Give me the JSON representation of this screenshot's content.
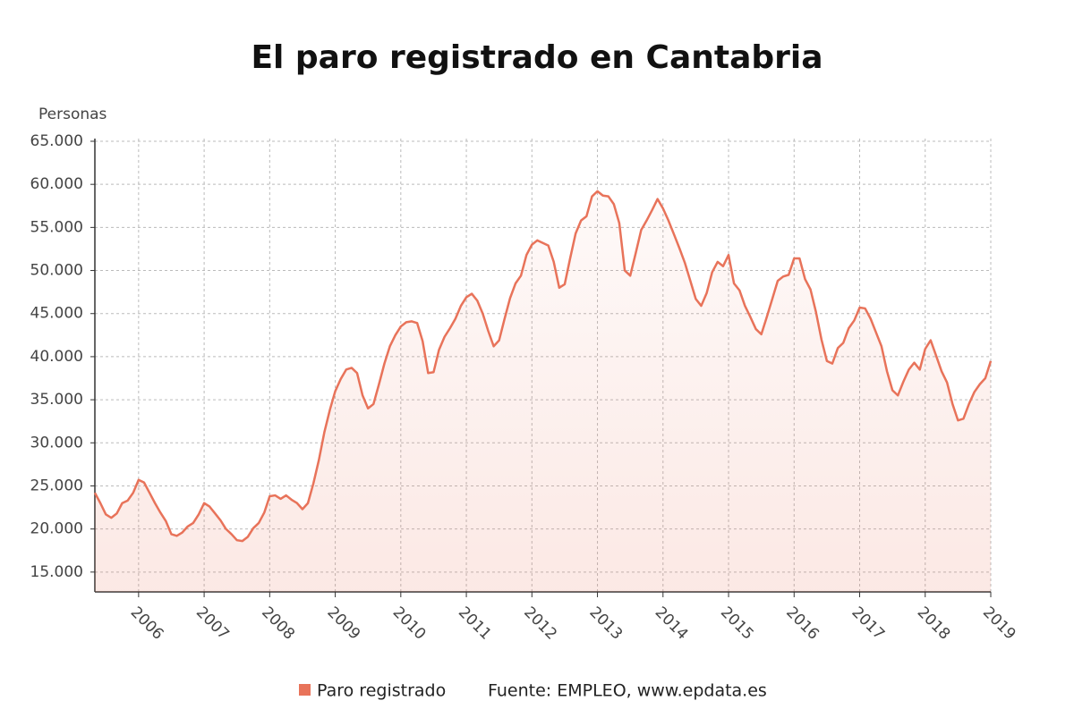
{
  "chart_data": {
    "type": "line",
    "title": "El paro registrado en Cantabria",
    "y_label": "Personas",
    "source": "Fuente: EMPLEO, www.epdata.es",
    "x": [
      2005.333,
      2005.417,
      2005.5,
      2005.583,
      2005.667,
      2005.75,
      2005.833,
      2005.917,
      2006,
      2006.083,
      2006.167,
      2006.25,
      2006.333,
      2006.417,
      2006.5,
      2006.583,
      2006.667,
      2006.75,
      2006.833,
      2006.917,
      2007,
      2007.083,
      2007.167,
      2007.25,
      2007.333,
      2007.417,
      2007.5,
      2007.583,
      2007.667,
      2007.75,
      2007.833,
      2007.917,
      2008,
      2008.083,
      2008.167,
      2008.25,
      2008.333,
      2008.417,
      2008.5,
      2008.583,
      2008.667,
      2008.75,
      2008.833,
      2008.917,
      2009,
      2009.083,
      2009.167,
      2009.25,
      2009.333,
      2009.417,
      2009.5,
      2009.583,
      2009.667,
      2009.75,
      2009.833,
      2009.917,
      2010,
      2010.083,
      2010.167,
      2010.25,
      2010.333,
      2010.417,
      2010.5,
      2010.583,
      2010.667,
      2010.75,
      2010.833,
      2010.917,
      2011,
      2011.083,
      2011.167,
      2011.25,
      2011.333,
      2011.417,
      2011.5,
      2011.583,
      2011.667,
      2011.75,
      2011.833,
      2011.917,
      2012,
      2012.083,
      2012.167,
      2012.25,
      2012.333,
      2012.417,
      2012.5,
      2012.583,
      2012.667,
      2012.75,
      2012.833,
      2012.917,
      2013,
      2013.083,
      2013.167,
      2013.25,
      2013.333,
      2013.417,
      2013.5,
      2013.583,
      2013.667,
      2013.75,
      2013.833,
      2013.917,
      2014,
      2014.083,
      2014.167,
      2014.25,
      2014.333,
      2014.417,
      2014.5,
      2014.583,
      2014.667,
      2014.75,
      2014.833,
      2014.917,
      2015,
      2015.083,
      2015.167,
      2015.25,
      2015.333,
      2015.417,
      2015.5,
      2015.583,
      2015.667,
      2015.75,
      2015.833,
      2015.917,
      2016,
      2016.083,
      2016.167,
      2016.25,
      2016.333,
      2016.417,
      2016.5,
      2016.583,
      2016.667,
      2016.75,
      2016.833,
      2016.917,
      2017,
      2017.083,
      2017.167,
      2017.25,
      2017.333,
      2017.417,
      2017.5,
      2017.583,
      2017.667,
      2017.75,
      2017.833,
      2017.917,
      2018,
      2018.083,
      2018.167,
      2018.25,
      2018.333,
      2018.417,
      2018.5,
      2018.583,
      2018.667,
      2018.75,
      2018.833,
      2018.917,
      2019
    ],
    "series": [
      {
        "name": "Paro registrado",
        "color": "#e8735a",
        "values": [
          24200,
          23000,
          21700,
          21300,
          21800,
          23000,
          23300,
          24200,
          25700,
          25400,
          24200,
          23000,
          21900,
          20900,
          19400,
          19200,
          19600,
          20300,
          20700,
          21700,
          23000,
          22600,
          21800,
          21000,
          20000,
          19400,
          18700,
          18600,
          19100,
          20100,
          20700,
          21900,
          23800,
          23900,
          23500,
          23900,
          23400,
          23000,
          22300,
          23000,
          25300,
          28000,
          31200,
          33800,
          36000,
          37400,
          38500,
          38700,
          38100,
          35500,
          34000,
          34500,
          36800,
          39200,
          41200,
          42500,
          43500,
          44000,
          44100,
          43900,
          41800,
          38100,
          38200,
          40800,
          42300,
          43300,
          44400,
          45900,
          46900,
          47300,
          46500,
          45000,
          43000,
          41200,
          41900,
          44400,
          46800,
          48500,
          49400,
          51800,
          53000,
          53500,
          53200,
          52900,
          51000,
          48000,
          48400,
          51400,
          54300,
          55800,
          56300,
          58600,
          59200,
          58700,
          58600,
          57700,
          55500,
          50000,
          49400,
          52000,
          54700,
          55800,
          57000,
          58300,
          57200,
          55800,
          54200,
          52600,
          50900,
          48800,
          46700,
          45900,
          47400,
          49800,
          51000,
          50500,
          51800,
          48500,
          47700,
          45900,
          44600,
          43200,
          42600,
          44600,
          46700,
          48800,
          49300,
          49500,
          51400,
          51400,
          49000,
          47800,
          45200,
          42000,
          39500,
          39200,
          41000,
          41600,
          43300,
          44200,
          45700,
          45600,
          44400,
          42800,
          41200,
          38300,
          36100,
          35500,
          37100,
          38500,
          39300,
          38500,
          40900,
          41900,
          40100,
          38300,
          37000,
          34500,
          32600,
          32800,
          34500,
          35900,
          36800,
          37500,
          39500
        ]
      }
    ],
    "xlim": [
      2005.333,
      2019
    ],
    "xticks": [
      2006,
      2007,
      2008,
      2009,
      2010,
      2011,
      2012,
      2013,
      2014,
      2015,
      2016,
      2017,
      2018,
      2019
    ],
    "ylim": [
      12700,
      65000
    ],
    "yticks": [
      {
        "value": 15000,
        "label": "15.000"
      },
      {
        "value": 20000,
        "label": "20.000"
      },
      {
        "value": 25000,
        "label": "25.000"
      },
      {
        "value": 30000,
        "label": "30.000"
      },
      {
        "value": 35000,
        "label": "35.000"
      },
      {
        "value": 40000,
        "label": "40.000"
      },
      {
        "value": 45000,
        "label": "45.000"
      },
      {
        "value": 50000,
        "label": "50.000"
      },
      {
        "value": 55000,
        "label": "55.000"
      },
      {
        "value": 60000,
        "label": "60.000"
      },
      {
        "value": 65000,
        "label": "65.000"
      }
    ],
    "grid": true,
    "legend": "bottom"
  }
}
